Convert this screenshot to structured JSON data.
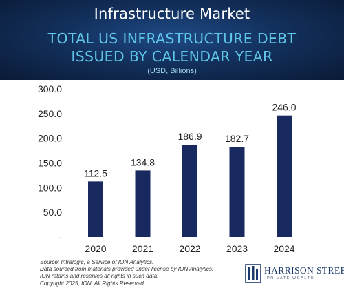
{
  "header": {
    "market_label": "Infrastructure Market",
    "background_color": "#12305c",
    "title_color": "#5fc6e8"
  },
  "chart_data": {
    "type": "bar",
    "title_lines": [
      "TOTAL US INFRASTRUCTURE DEBT",
      "ISSUED BY CALENDAR YEAR"
    ],
    "subtitle": "(USD, Billions)",
    "categories": [
      "2020",
      "2021",
      "2022",
      "2023",
      "2024"
    ],
    "values": [
      112.5,
      134.8,
      186.9,
      182.7,
      246.0
    ],
    "value_labels": [
      "112.5",
      "134.8",
      "186.9",
      "182.7",
      "246.0"
    ],
    "ylim": [
      0,
      300
    ],
    "y_ticks": [
      {
        "value": 300,
        "label": "300.0"
      },
      {
        "value": 250,
        "label": "250.0"
      },
      {
        "value": 200,
        "label": "200.0"
      },
      {
        "value": 150,
        "label": "150.0"
      },
      {
        "value": 100,
        "label": "100.0"
      },
      {
        "value": 50,
        "label": "50.0"
      },
      {
        "value": 0,
        "label": "-"
      }
    ],
    "bar_color": "#17295f",
    "grid": false,
    "legend": "none"
  },
  "footer": {
    "source_lines": [
      "Source: Infralogic, a Service of ION Analytics.",
      "Data sourced from materials provided under license by ION Analytics.",
      "ION retains and reserves all rights in such data.",
      "Copyright 2025, ION. All Rights Reserved."
    ],
    "logo_name": "HARRISON STREET",
    "logo_tagline": "PRIVATE WEALTH",
    "logo_color": "#1c3a6b"
  }
}
